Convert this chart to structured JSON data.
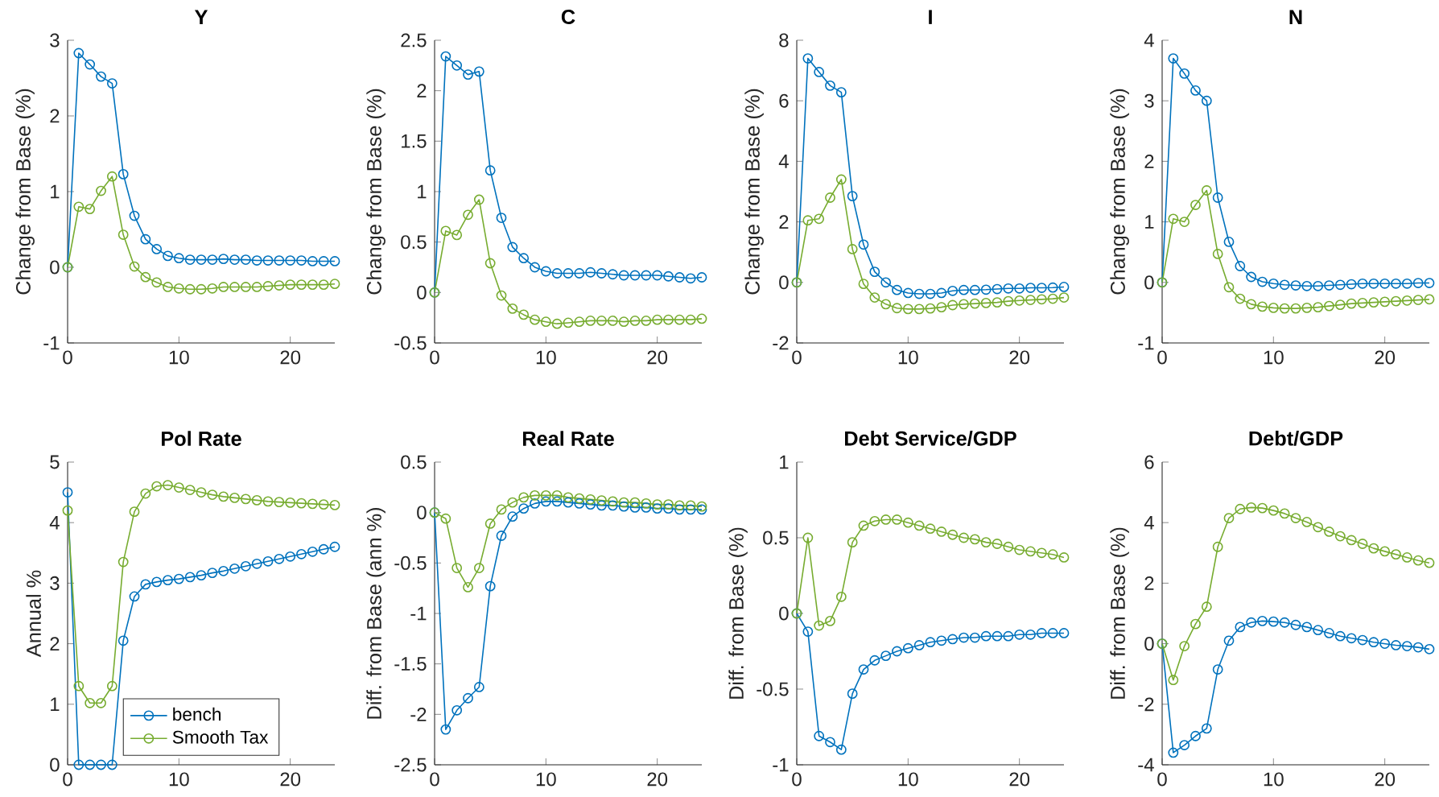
{
  "chart_data": [
    {
      "type": "line",
      "title": "Y",
      "ylabel": "Change from Base (%)",
      "marker": "circle",
      "xlim": [
        0,
        24
      ],
      "xticks": [
        0,
        10,
        20
      ],
      "ylim": [
        -1,
        3
      ],
      "yticks": [
        -1,
        0,
        1,
        2,
        3
      ],
      "x": [
        0,
        1,
        2,
        3,
        4,
        5,
        6,
        7,
        8,
        9,
        10,
        11,
        12,
        13,
        14,
        15,
        16,
        17,
        18,
        19,
        20,
        21,
        22,
        23,
        24
      ],
      "series": [
        {
          "color": "#0072bd",
          "values": [
            0,
            2.83,
            2.68,
            2.52,
            2.43,
            1.23,
            0.68,
            0.37,
            0.24,
            0.15,
            0.12,
            0.1,
            0.1,
            0.1,
            0.11,
            0.1,
            0.1,
            0.09,
            0.09,
            0.09,
            0.09,
            0.09,
            0.08,
            0.08,
            0.08
          ]
        },
        {
          "color": "#77ac30",
          "values": [
            0,
            0.8,
            0.77,
            1.01,
            1.2,
            0.43,
            0.01,
            -0.13,
            -0.2,
            -0.26,
            -0.28,
            -0.29,
            -0.29,
            -0.28,
            -0.26,
            -0.26,
            -0.26,
            -0.26,
            -0.25,
            -0.24,
            -0.23,
            -0.23,
            -0.23,
            -0.23,
            -0.22
          ]
        }
      ]
    },
    {
      "type": "line",
      "title": "C",
      "ylabel": "Change from Base (%)",
      "marker": "circle",
      "xlim": [
        0,
        24
      ],
      "xticks": [
        0,
        10,
        20
      ],
      "ylim": [
        -0.5,
        2.5
      ],
      "yticks": [
        -0.5,
        0,
        0.5,
        1,
        1.5,
        2,
        2.5
      ],
      "x": [
        0,
        1,
        2,
        3,
        4,
        5,
        6,
        7,
        8,
        9,
        10,
        11,
        12,
        13,
        14,
        15,
        16,
        17,
        18,
        19,
        20,
        21,
        22,
        23,
        24
      ],
      "series": [
        {
          "color": "#0072bd",
          "values": [
            0,
            2.34,
            2.25,
            2.16,
            2.19,
            1.21,
            0.74,
            0.45,
            0.34,
            0.25,
            0.21,
            0.19,
            0.19,
            0.19,
            0.2,
            0.19,
            0.18,
            0.17,
            0.17,
            0.17,
            0.17,
            0.16,
            0.15,
            0.14,
            0.15
          ]
        },
        {
          "color": "#77ac30",
          "values": [
            0,
            0.61,
            0.57,
            0.77,
            0.92,
            0.29,
            -0.03,
            -0.16,
            -0.22,
            -0.27,
            -0.29,
            -0.31,
            -0.3,
            -0.29,
            -0.28,
            -0.28,
            -0.28,
            -0.29,
            -0.28,
            -0.28,
            -0.27,
            -0.27,
            -0.27,
            -0.27,
            -0.26
          ]
        }
      ]
    },
    {
      "type": "line",
      "title": "I",
      "ylabel": "Change from Base (%)",
      "marker": "circle",
      "xlim": [
        0,
        24
      ],
      "xticks": [
        0,
        10,
        20
      ],
      "ylim": [
        -2,
        8
      ],
      "yticks": [
        -2,
        0,
        2,
        4,
        6,
        8
      ],
      "x": [
        0,
        1,
        2,
        3,
        4,
        5,
        6,
        7,
        8,
        9,
        10,
        11,
        12,
        13,
        14,
        15,
        16,
        17,
        18,
        19,
        20,
        21,
        22,
        23,
        24
      ],
      "series": [
        {
          "color": "#0072bd",
          "values": [
            0,
            7.4,
            6.95,
            6.5,
            6.28,
            2.85,
            1.25,
            0.35,
            0,
            -0.25,
            -0.35,
            -0.38,
            -0.38,
            -0.35,
            -0.28,
            -0.25,
            -0.25,
            -0.24,
            -0.22,
            -0.2,
            -0.2,
            -0.18,
            -0.18,
            -0.17,
            -0.15
          ]
        },
        {
          "color": "#77ac30",
          "values": [
            0,
            2.05,
            2.1,
            2.8,
            3.4,
            1.1,
            -0.05,
            -0.5,
            -0.72,
            -0.85,
            -0.88,
            -0.88,
            -0.86,
            -0.82,
            -0.75,
            -0.72,
            -0.7,
            -0.68,
            -0.66,
            -0.62,
            -0.6,
            -0.58,
            -0.56,
            -0.54,
            -0.5
          ]
        }
      ]
    },
    {
      "type": "line",
      "title": "N",
      "ylabel": "Change from Base (%)",
      "marker": "circle",
      "xlim": [
        0,
        24
      ],
      "xticks": [
        0,
        10,
        20
      ],
      "ylim": [
        -1,
        4
      ],
      "yticks": [
        -1,
        0,
        1,
        2,
        3,
        4
      ],
      "x": [
        0,
        1,
        2,
        3,
        4,
        5,
        6,
        7,
        8,
        9,
        10,
        11,
        12,
        13,
        14,
        15,
        16,
        17,
        18,
        19,
        20,
        21,
        22,
        23,
        24
      ],
      "series": [
        {
          "color": "#0072bd",
          "values": [
            0,
            3.7,
            3.45,
            3.17,
            3.0,
            1.4,
            0.67,
            0.27,
            0.09,
            0.01,
            -0.02,
            -0.04,
            -0.05,
            -0.06,
            -0.06,
            -0.05,
            -0.04,
            -0.03,
            -0.02,
            -0.02,
            -0.02,
            -0.02,
            -0.02,
            -0.01,
            -0.01
          ]
        },
        {
          "color": "#77ac30",
          "values": [
            0,
            1.05,
            1.0,
            1.28,
            1.52,
            0.47,
            -0.08,
            -0.27,
            -0.36,
            -0.4,
            -0.42,
            -0.43,
            -0.43,
            -0.42,
            -0.41,
            -0.39,
            -0.37,
            -0.35,
            -0.34,
            -0.33,
            -0.32,
            -0.31,
            -0.3,
            -0.29,
            -0.28
          ]
        }
      ]
    },
    {
      "type": "line",
      "title": "Pol Rate",
      "ylabel": "Annual %",
      "marker": "circle",
      "legend": "bottom",
      "xlim": [
        0,
        24
      ],
      "xticks": [
        0,
        10,
        20
      ],
      "ylim": [
        0,
        5
      ],
      "yticks": [
        0,
        1,
        2,
        3,
        4,
        5
      ],
      "x": [
        0,
        1,
        2,
        3,
        4,
        5,
        6,
        7,
        8,
        9,
        10,
        11,
        12,
        13,
        14,
        15,
        16,
        17,
        18,
        19,
        20,
        21,
        22,
        23,
        24
      ],
      "series": [
        {
          "name": "bench",
          "color": "#0072bd",
          "values": [
            4.5,
            0,
            0,
            0,
            0,
            2.05,
            2.78,
            2.98,
            3.02,
            3.05,
            3.07,
            3.1,
            3.13,
            3.17,
            3.2,
            3.24,
            3.28,
            3.32,
            3.36,
            3.4,
            3.44,
            3.48,
            3.52,
            3.56,
            3.6
          ]
        },
        {
          "name": "Smooth Tax",
          "color": "#77ac30",
          "values": [
            4.2,
            1.3,
            1.02,
            1.02,
            1.3,
            3.35,
            4.18,
            4.48,
            4.6,
            4.62,
            4.58,
            4.54,
            4.5,
            4.46,
            4.43,
            4.41,
            4.39,
            4.37,
            4.35,
            4.34,
            4.33,
            4.32,
            4.31,
            4.3,
            4.29
          ]
        }
      ]
    },
    {
      "type": "line",
      "title": "Real Rate",
      "ylabel": "Diff. from Base (ann %)",
      "marker": "circle",
      "xlim": [
        0,
        24
      ],
      "xticks": [
        0,
        10,
        20
      ],
      "ylim": [
        -2.5,
        0.5
      ],
      "yticks": [
        -2.5,
        -2,
        -1.5,
        -1,
        -0.5,
        0,
        0.5
      ],
      "x": [
        0,
        1,
        2,
        3,
        4,
        5,
        6,
        7,
        8,
        9,
        10,
        11,
        12,
        13,
        14,
        15,
        16,
        17,
        18,
        19,
        20,
        21,
        22,
        23,
        24
      ],
      "series": [
        {
          "color": "#0072bd",
          "values": [
            0,
            -2.15,
            -1.96,
            -1.84,
            -1.73,
            -0.73,
            -0.23,
            -0.04,
            0.04,
            0.09,
            0.11,
            0.11,
            0.1,
            0.09,
            0.08,
            0.07,
            0.07,
            0.06,
            0.05,
            0.05,
            0.04,
            0.04,
            0.03,
            0.03,
            0.03
          ]
        },
        {
          "color": "#77ac30",
          "values": [
            0,
            -0.06,
            -0.55,
            -0.74,
            -0.55,
            -0.11,
            0.03,
            0.1,
            0.15,
            0.17,
            0.17,
            0.17,
            0.15,
            0.14,
            0.13,
            0.12,
            0.11,
            0.1,
            0.1,
            0.09,
            0.08,
            0.08,
            0.07,
            0.07,
            0.06
          ]
        }
      ]
    },
    {
      "type": "line",
      "title": "Debt Service/GDP",
      "ylabel": "Diff. from Base (%)",
      "marker": "circle",
      "xlim": [
        0,
        24
      ],
      "xticks": [
        0,
        10,
        20
      ],
      "ylim": [
        -1,
        1
      ],
      "yticks": [
        -1,
        -0.5,
        0,
        0.5,
        1
      ],
      "x": [
        0,
        1,
        2,
        3,
        4,
        5,
        6,
        7,
        8,
        9,
        10,
        11,
        12,
        13,
        14,
        15,
        16,
        17,
        18,
        19,
        20,
        21,
        22,
        23,
        24
      ],
      "series": [
        {
          "color": "#0072bd",
          "values": [
            0,
            -0.12,
            -0.81,
            -0.85,
            -0.9,
            -0.53,
            -0.37,
            -0.31,
            -0.28,
            -0.25,
            -0.23,
            -0.21,
            -0.19,
            -0.18,
            -0.17,
            -0.16,
            -0.16,
            -0.15,
            -0.15,
            -0.15,
            -0.14,
            -0.14,
            -0.13,
            -0.13,
            -0.13
          ]
        },
        {
          "color": "#77ac30",
          "values": [
            0,
            0.5,
            -0.08,
            -0.05,
            0.11,
            0.47,
            0.58,
            0.61,
            0.62,
            0.62,
            0.6,
            0.58,
            0.56,
            0.54,
            0.52,
            0.5,
            0.49,
            0.47,
            0.46,
            0.44,
            0.42,
            0.41,
            0.4,
            0.39,
            0.37
          ]
        }
      ]
    },
    {
      "type": "line",
      "title": "Debt/GDP",
      "ylabel": "Diff. from Base (%)",
      "marker": "circle",
      "xlim": [
        0,
        24
      ],
      "xticks": [
        0,
        10,
        20
      ],
      "ylim": [
        -4,
        6
      ],
      "yticks": [
        -4,
        -2,
        0,
        2,
        4,
        6
      ],
      "x": [
        0,
        1,
        2,
        3,
        4,
        5,
        6,
        7,
        8,
        9,
        10,
        11,
        12,
        13,
        14,
        15,
        16,
        17,
        18,
        19,
        20,
        21,
        22,
        23,
        24
      ],
      "series": [
        {
          "color": "#0072bd",
          "values": [
            0,
            -3.6,
            -3.35,
            -3.05,
            -2.8,
            -0.85,
            0.1,
            0.55,
            0.7,
            0.75,
            0.73,
            0.7,
            0.62,
            0.55,
            0.45,
            0.35,
            0.25,
            0.18,
            0.12,
            0.05,
            0,
            -0.05,
            -0.08,
            -0.12,
            -0.18
          ]
        },
        {
          "color": "#77ac30",
          "values": [
            0,
            -1.2,
            -0.08,
            0.65,
            1.22,
            3.2,
            4.15,
            4.45,
            4.5,
            4.48,
            4.4,
            4.3,
            4.15,
            4.02,
            3.85,
            3.7,
            3.55,
            3.42,
            3.3,
            3.15,
            3.05,
            2.95,
            2.85,
            2.75,
            2.67
          ]
        }
      ]
    }
  ]
}
